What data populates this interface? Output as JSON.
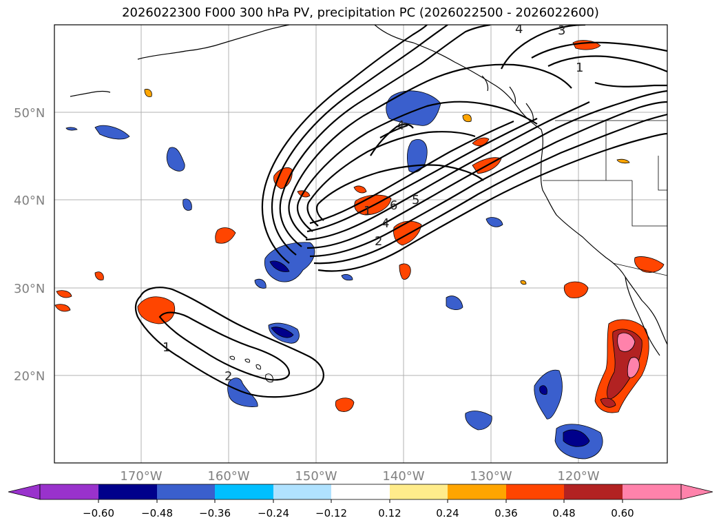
{
  "title": "2026022300 F000 300 hPa PV, precipitation PC (2026022500 - 2026022600)",
  "lat_labels": [
    "50°N",
    "40°N",
    "30°N",
    "20°N"
  ],
  "lon_labels": [
    "170°W",
    "160°W",
    "150°W",
    "140°W",
    "130°W",
    "120°W"
  ],
  "colorbar": {
    "tick_labels": [
      "−0.60",
      "−0.48",
      "−0.36",
      "−0.24",
      "−0.12",
      "0.12",
      "0.24",
      "0.36",
      "0.48",
      "0.60"
    ],
    "colors": [
      "#9932cc",
      "#00008b",
      "#3a5fcd",
      "#00bfff",
      "#b0e2ff",
      "#ffffff",
      "#ffec8b",
      "#ffa500",
      "#ff4500",
      "#b22222",
      "#ff82ab"
    ]
  },
  "contour_labels": [
    "4",
    "3",
    "1",
    "4",
    "6",
    "5",
    "4",
    "2",
    "1",
    "1",
    "2"
  ]
}
